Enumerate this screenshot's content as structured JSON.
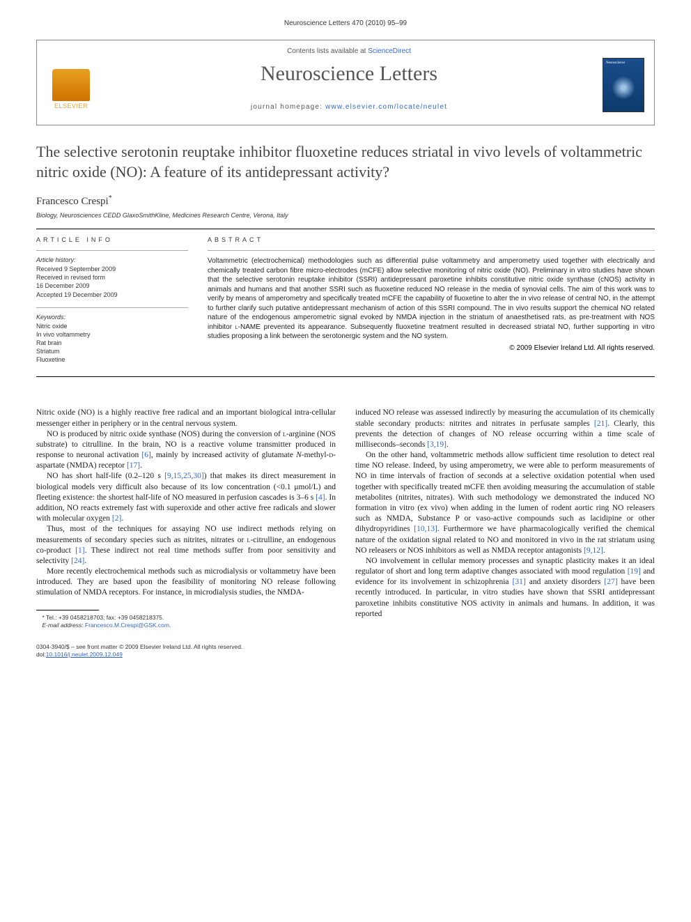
{
  "running_header": "Neuroscience Letters 470 (2010) 95–99",
  "masthead": {
    "publisher_logo_text": "ELSEVIER",
    "contents_prefix": "Contents lists available at ",
    "contents_link": "ScienceDirect",
    "journal_title": "Neuroscience Letters",
    "homepage_prefix": "journal homepage: ",
    "homepage_url": "www.elsevier.com/locate/neulet"
  },
  "article": {
    "title": "The selective serotonin reuptake inhibitor fluoxetine reduces striatal in vivo levels of voltammetric nitric oxide (NO): A feature of its antidepressant activity?",
    "author": "Francesco Crespi",
    "author_marker": "*",
    "affiliation": "Biology, Neurosciences CEDD GlaxoSmithKline, Medicines Research Centre, Verona, Italy"
  },
  "info": {
    "label": "article info",
    "history_head": "Article history:",
    "history_lines": [
      "Received 9 September 2009",
      "Received in revised form",
      "16 December 2009",
      "Accepted 19 December 2009"
    ],
    "keywords_head": "Keywords:",
    "keywords": [
      "Nitric oxide",
      "In vivo voltammetry",
      "Rat brain",
      "Striatum",
      "Fluoxetine"
    ]
  },
  "abstract": {
    "label": "abstract",
    "text": "Voltammetric (electrochemical) methodologies such as differential pulse voltammetry and amperometry used together with electrically and chemically treated carbon fibre micro-electrodes (mCFE) allow selective monitoring of nitric oxide (NO). Preliminary in vitro studies have shown that the selective serotonin reuptake inhibitor (SSRI) antidepressant paroxetine inhibits constitutive nitric oxide synthase (cNOS) activity in animals and humans and that another SSRI such as fluoxetine reduced NO release in the media of synovial cells. The aim of this work was to verify by means of amperometry and specifically treated mCFE the capability of fluoxetine to alter the in vivo release of central NO, in the attempt to further clarify such putative antidepressant mechanism of action of this SSRI compound. The in vivo results support the chemical NO related nature of the endogenous amperometric signal evoked by NMDA injection in the striatum of anaesthetised rats, as pre-treatment with NOS inhibitor L-NAME prevented its appearance. Subsequently fluoxetine treatment resulted in decreased striatal NO, further supporting in vitro studies proposing a link between the serotonergic system and the NO system.",
    "copyright": "© 2009 Elsevier Ireland Ltd. All rights reserved."
  },
  "body": {
    "left": [
      "Nitric oxide (NO) is a highly reactive free radical and an important biological intra-cellular messenger either in periphery or in the central nervous system.",
      "NO is produced by nitric oxide synthase (NOS) during the conversion of l-arginine (NOS substrate) to citrulline. In the brain, NO is a reactive volume transmitter produced in response to neuronal activation [6], mainly by increased activity of glutamate N-methyl-d-aspartate (NMDA) receptor [17].",
      "NO has short half-life (0.2–120 s [9,15,25,30]) that makes its direct measurement in biological models very difficult also because of its low concentration (<0.1 μmol/L) and fleeting existence: the shortest half-life of NO measured in perfusion cascades is 3–6 s [4]. In addition, NO reacts extremely fast with superoxide and other active free radicals and slower with molecular oxygen [2].",
      "Thus, most of the techniques for assaying NO use indirect methods relying on measurements of secondary species such as nitrites, nitrates or l-citrulline, an endogenous co-product [1]. These indirect not real time methods suffer from poor sensitivity and selectivity [24].",
      "More recently electrochemical methods such as microdialysis or voltammetry have been introduced. They are based upon the feasibility of monitoring NO release following stimulation of NMDA receptors. For instance, in microdialysis studies, the NMDA-"
    ],
    "right": [
      "induced NO release was assessed indirectly by measuring the accumulation of its chemically stable secondary products: nitrites and nitrates in perfusate samples [21]. Clearly, this prevents the detection of changes of NO release occurring within a time scale of milliseconds–seconds [3,19].",
      "On the other hand, voltammetric methods allow sufficient time resolution to detect real time NO release. Indeed, by using amperometry, we were able to perform measurements of NO in time intervals of fraction of seconds at a selective oxidation potential when used together with specifically treated mCFE then avoiding measuring the accumulation of stable metabolites (nitrites, nitrates). With such methodology we demonstrated the induced NO formation in vitro (ex vivo) when adding in the lumen of rodent aortic ring NO releasers such as NMDA, Substance P or vaso-active compounds such as lacidipine or other dihydropyridines [10,13]. Furthermore we have pharmacologically verified the chemical nature of the oxidation signal related to NO and monitored in vivo in the rat striatum using NO releasers or NOS inhibitors as well as NMDA receptor antagonists [9,12].",
      "NO involvement in cellular memory processes and synaptic plasticity makes it an ideal regulator of short and long term adaptive changes associated with mood regulation [19] and evidence for its involvement in schizophrenia [31] and anxiety disorders [27] have been recently introduced. In particular, in vitro studies have shown that SSRI antidepressant paroxetine inhibits constitutive NOS activity in animals and humans. In addition, it was reported"
    ]
  },
  "footnote": {
    "star": "*",
    "tel_label": "Tel.: ",
    "tel": "+39 0458218703",
    "fax_label": "; fax: ",
    "fax": "+39 0458218375.",
    "email_label": "E-mail address: ",
    "email": "Francesco.M.Crespi@GSK.com",
    "email_suffix": "."
  },
  "footer": {
    "line1": "0304-3940/$ – see front matter © 2009 Elsevier Ireland Ltd. All rights reserved.",
    "line2_prefix": "doi:",
    "doi": "10.1016/j.neulet.2009.12.049"
  },
  "colors": {
    "link": "#3366cc",
    "text": "#1a1a1a",
    "title_gray": "#444444",
    "logo_orange": "#e8a020",
    "cover_blue": "#1a4d8c"
  },
  "typography": {
    "body_fontsize_pt": 9,
    "title_fontsize_pt": 17,
    "journal_title_fontsize_pt": 24,
    "abstract_fontsize_pt": 8,
    "info_fontsize_pt": 7
  }
}
